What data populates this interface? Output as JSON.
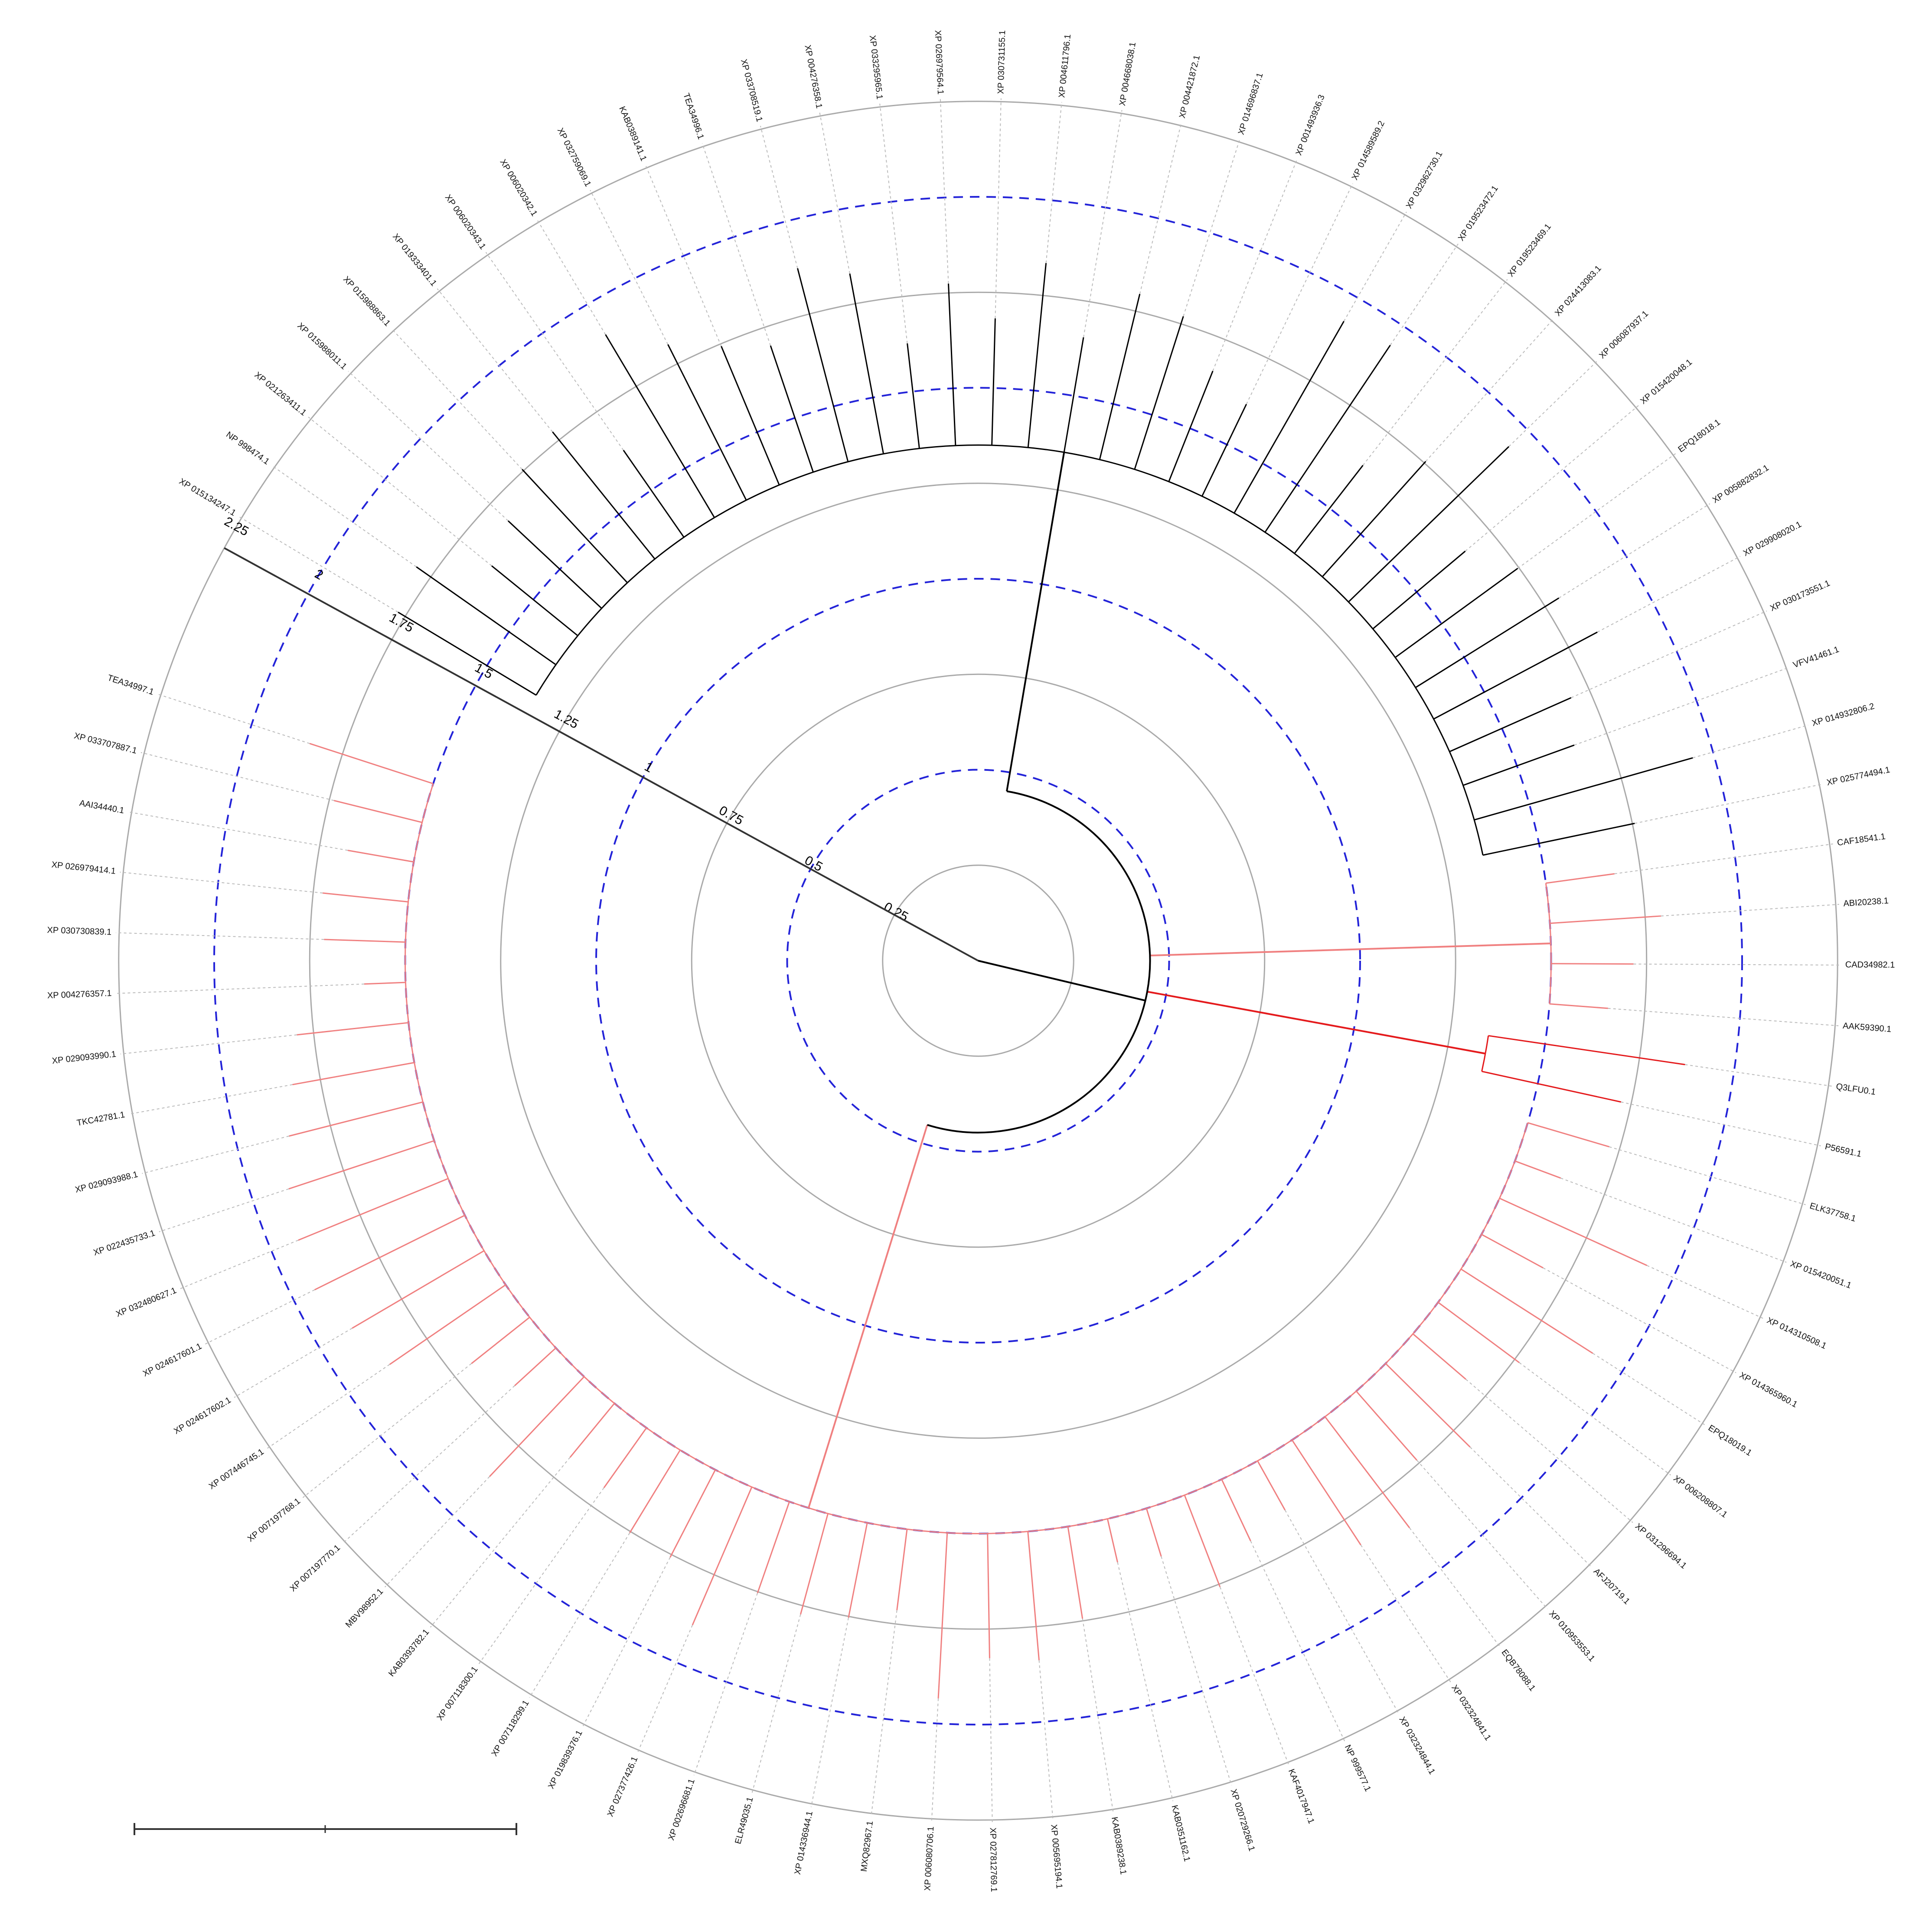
{
  "scale": {
    "ticks": [
      0.25,
      0.5,
      0.75,
      1,
      1.25,
      1.5,
      1.75,
      2,
      2.25
    ]
  },
  "clades": [
    {
      "color": "#000000",
      "leaves": [
        "XP 015134247.1",
        "NP 998474.1",
        "XP 021263411.1",
        "XP 015988011.1",
        "XP 015988863.1",
        "XP 019333401.1",
        "XP 006020343.1",
        "XP 006020342.1",
        "XP 032759069.1",
        "KAB0389141.1",
        "TEA34996.1",
        "XP 033708519.1",
        "XP 004276358.1",
        "XP 033295965.1",
        "XP 026979564.1",
        "XP 030731155.1",
        "XP 004611796.1",
        "XP 004668038.1",
        "XP 004421872.1",
        "XP 014696837.1",
        "XP 001493936.3",
        "XP 014589589.2",
        "XP 032962730.1",
        "XP 019523472.1",
        "XP 019523469.1",
        "XP 024413083.1",
        "XP 006087937.1",
        "XP 015420048.1",
        "EPQ18018.1",
        "XP 005882832.1",
        "XP 029908020.1",
        "XP 030173551.1",
        "VFV41461.1",
        "XP 014932806.2",
        "XP 025774494.1"
      ]
    },
    {
      "color": "#f08080",
      "leaves": [
        "CAF18541.1",
        "ABI20238.1",
        "CAD34982.1",
        "AAK59390.1"
      ]
    },
    {
      "color": "#e41a1c",
      "leaves": [
        "Q3LFU0.1",
        "P56591.1"
      ]
    },
    {
      "color": "#f08080",
      "leaves": [
        "ELK37758.1",
        "XP 015420051.1",
        "XP 014310508.1",
        "XP 014365960.1",
        "EPQ18019.1",
        "XP 006208807.1",
        "XP 031296694.1",
        "AFJ20719.1",
        "XP 010953553.1",
        "EQB78088.1",
        "XP 032324841.1",
        "XP 032324844.1",
        "NP 999577.1",
        "KAF4017947.1",
        "XP 020729266.1",
        "KAB0351162.1",
        "KAB0389238.1",
        "XP 005695194.1",
        "XP 027812769.1",
        "XP 006080706.1",
        "MXQ82967.1",
        "XP 014336944.1",
        "ELR49035.1",
        "XP 002696681.1",
        "XP 027377426.1",
        "XP 019839376.1",
        "XP 007118299.1",
        "XP 007118300.1",
        "KAB0393782.1",
        "MBV98952.1",
        "XP 007197770.1",
        "XP 007197768.1",
        "XP 007446745.1",
        "XP 024617602.1",
        "XP 024617601.1",
        "XP 032480627.1",
        "XP 022435733.1",
        "XP 029093988.1",
        "TKC42781.1",
        "XP 029093990.1",
        "XP 004276357.1",
        "XP 030730839.1",
        "XP 026979414.1",
        "AAI34440.1",
        "XP 033707887.1",
        "TEA34997.1"
      ]
    }
  ]
}
